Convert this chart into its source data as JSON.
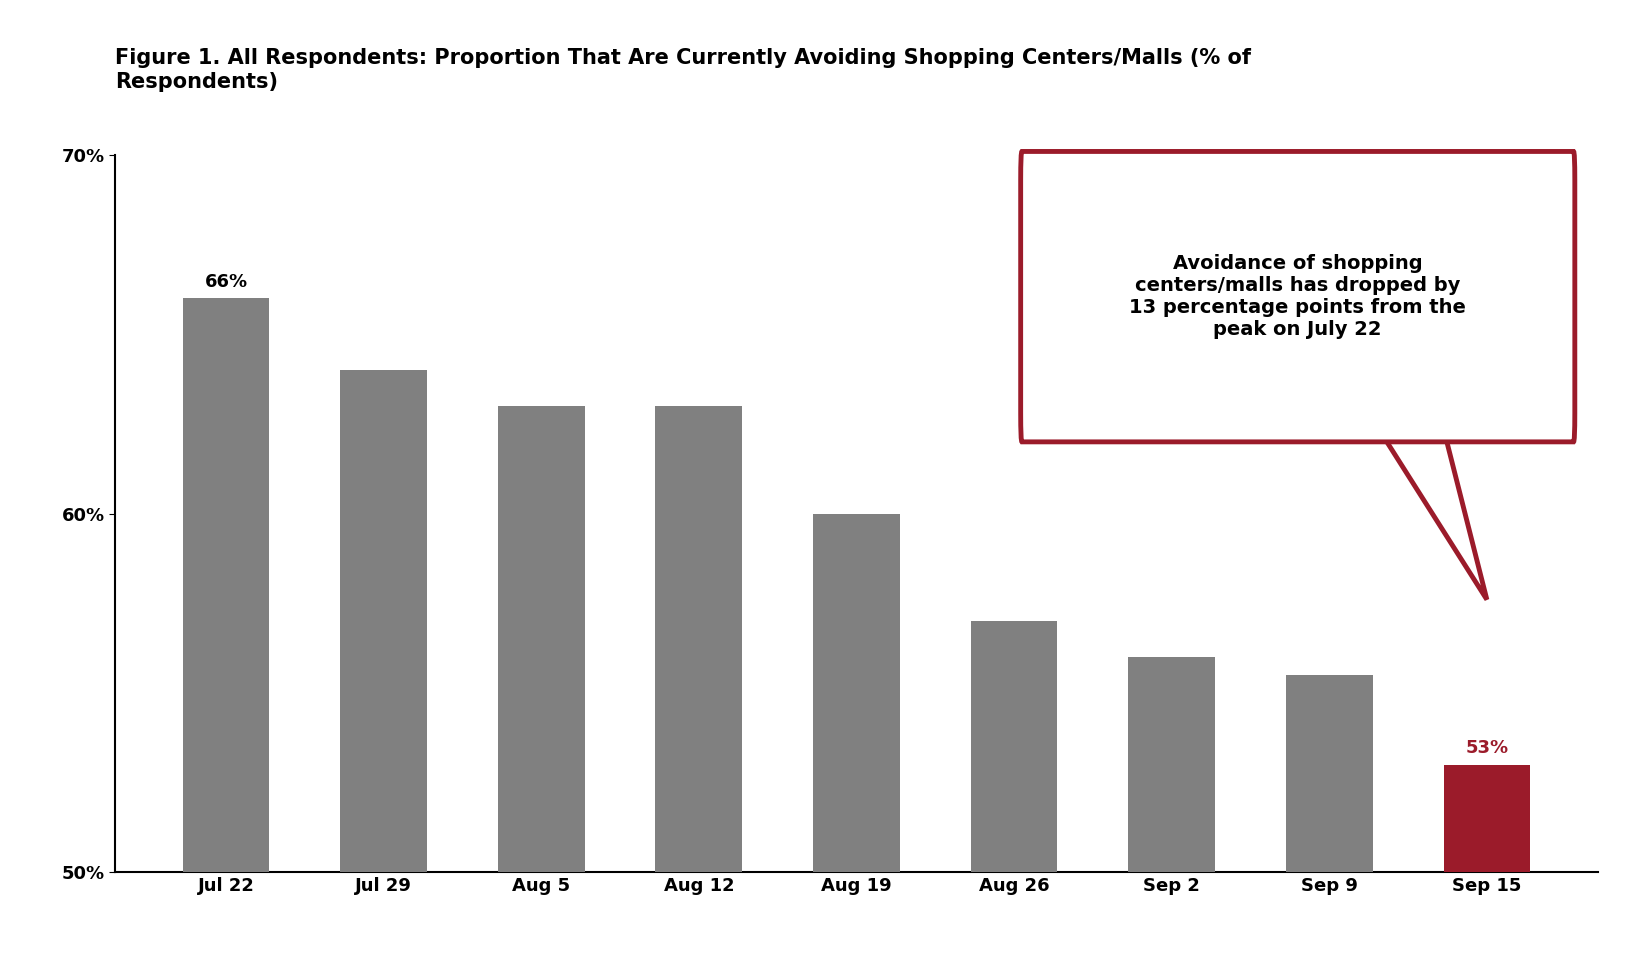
{
  "title": "Figure 1. All Respondents: Proportion That Are Currently Avoiding Shopping Centers/Malls (% of\nRespondents)",
  "categories": [
    "Jul 22",
    "Jul 29",
    "Aug 5",
    "Aug 12",
    "Aug 19",
    "Aug 26",
    "Sep 2",
    "Sep 9",
    "Sep 15"
  ],
  "values": [
    0.66,
    0.64,
    0.63,
    0.63,
    0.6,
    0.57,
    0.56,
    0.555,
    0.53
  ],
  "bar_colors": [
    "#808080",
    "#808080",
    "#808080",
    "#808080",
    "#808080",
    "#808080",
    "#808080",
    "#808080",
    "#9b1b2a"
  ],
  "label_colors": [
    "#000000",
    "#000000",
    "#000000",
    "#000000",
    "#000000",
    "#000000",
    "#000000",
    "#000000",
    "#9b1b2a"
  ],
  "labels": [
    "66%",
    "",
    "",
    "",
    "",
    "",
    "",
    "",
    "53%"
  ],
  "ylim": [
    0.5,
    0.7
  ],
  "yticks": [
    0.5,
    0.6,
    0.7
  ],
  "ytick_labels": [
    "50%",
    "60%",
    "70%"
  ],
  "callout_text": "Avoidance of shopping\ncenters/malls has dropped by\n13 percentage points from the\npeak on July 22",
  "callout_color": "#9b1b2a",
  "background_color": "#ffffff",
  "title_fontsize": 15,
  "tick_fontsize": 13,
  "label_fontsize": 13,
  "callout_fontsize": 14,
  "bar_width": 0.55
}
